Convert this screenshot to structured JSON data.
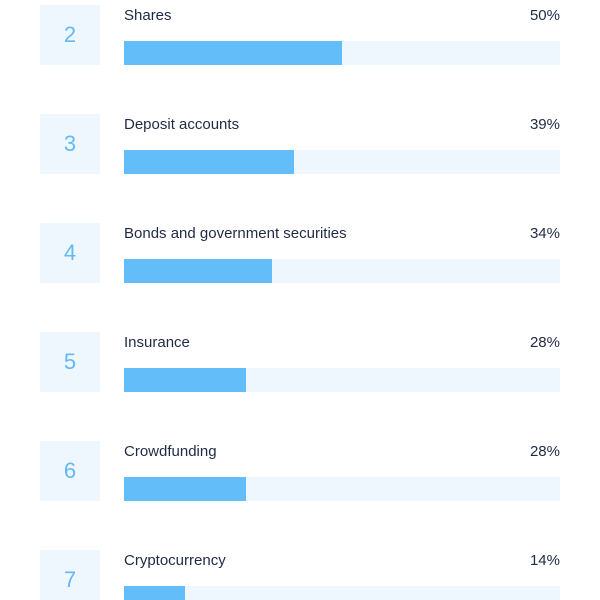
{
  "colors": {
    "bar_fill": "#63bdf8",
    "bar_track": "#eef7fe",
    "rank_box_bg": "#eef7fe",
    "rank_text": "#63b9f5",
    "label_text": "#1f2a44"
  },
  "chart_data": {
    "type": "bar",
    "orientation": "horizontal",
    "ranks": [
      "2",
      "3",
      "4",
      "5",
      "6",
      "7"
    ],
    "categories": [
      "Shares",
      "Deposit accounts",
      "Bonds and government securities",
      "Insurance",
      "Crowdfunding",
      "Cryptocurrency"
    ],
    "values": [
      50,
      39,
      34,
      28,
      28,
      14
    ],
    "value_labels": [
      "50%",
      "39%",
      "34%",
      "28%",
      "28%",
      "14%"
    ],
    "xlim": [
      0,
      100
    ],
    "grid": false,
    "legend": "none"
  }
}
